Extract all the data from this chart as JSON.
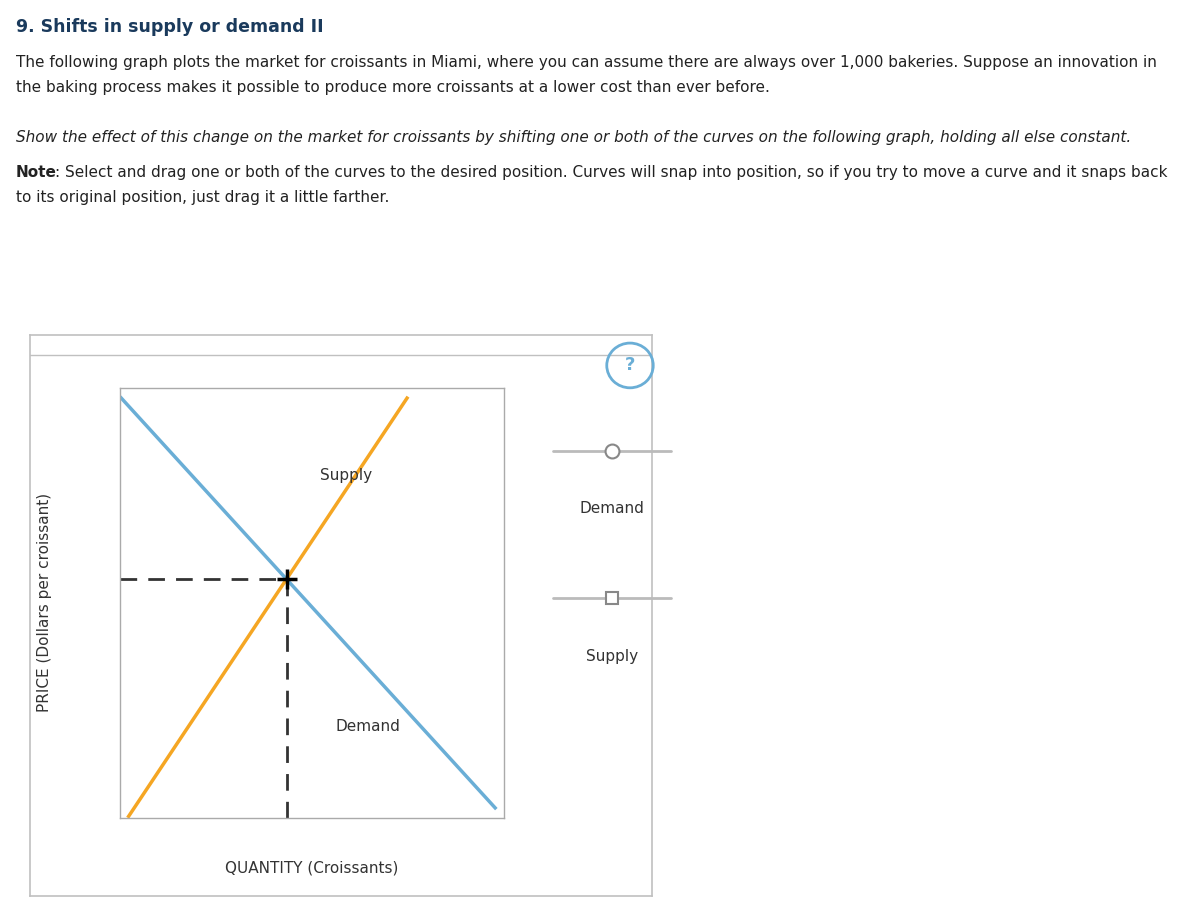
{
  "title": "9. Shifts in supply or demand II",
  "line1": "The following graph plots the market for croissants in Miami, where you can assume there are always over 1,000 bakeries. Suppose an innovation in",
  "line2": "the baking process makes it possible to produce more croissants at a lower cost than ever before.",
  "italic_text": "Show the effect of this change on the market for croissants by shifting one or both of the curves on the following graph, holding all else constant.",
  "note_bold": "Note",
  "note_rest": ": Select and drag one or both of the curves to the desired position. Curves will snap into position, so if you try to move a curve and it snaps back",
  "note_line2": "to its original position, just drag it a little farther.",
  "xlabel": "QUANTITY (Croissants)",
  "ylabel": "PRICE (Dollars per croissant)",
  "demand_color": "#6aaed6",
  "supply_color": "#f5a623",
  "dashed_color": "#333333",
  "graph_bg": "#ffffff",
  "outer_bg": "#ffffff",
  "border_color": "#c8c8c8",
  "legend_demand_label": "Demand",
  "legend_supply_label": "Supply",
  "question_mark_color": "#6aaed6",
  "title_color": "#1a3a5c",
  "text_color": "#222222"
}
